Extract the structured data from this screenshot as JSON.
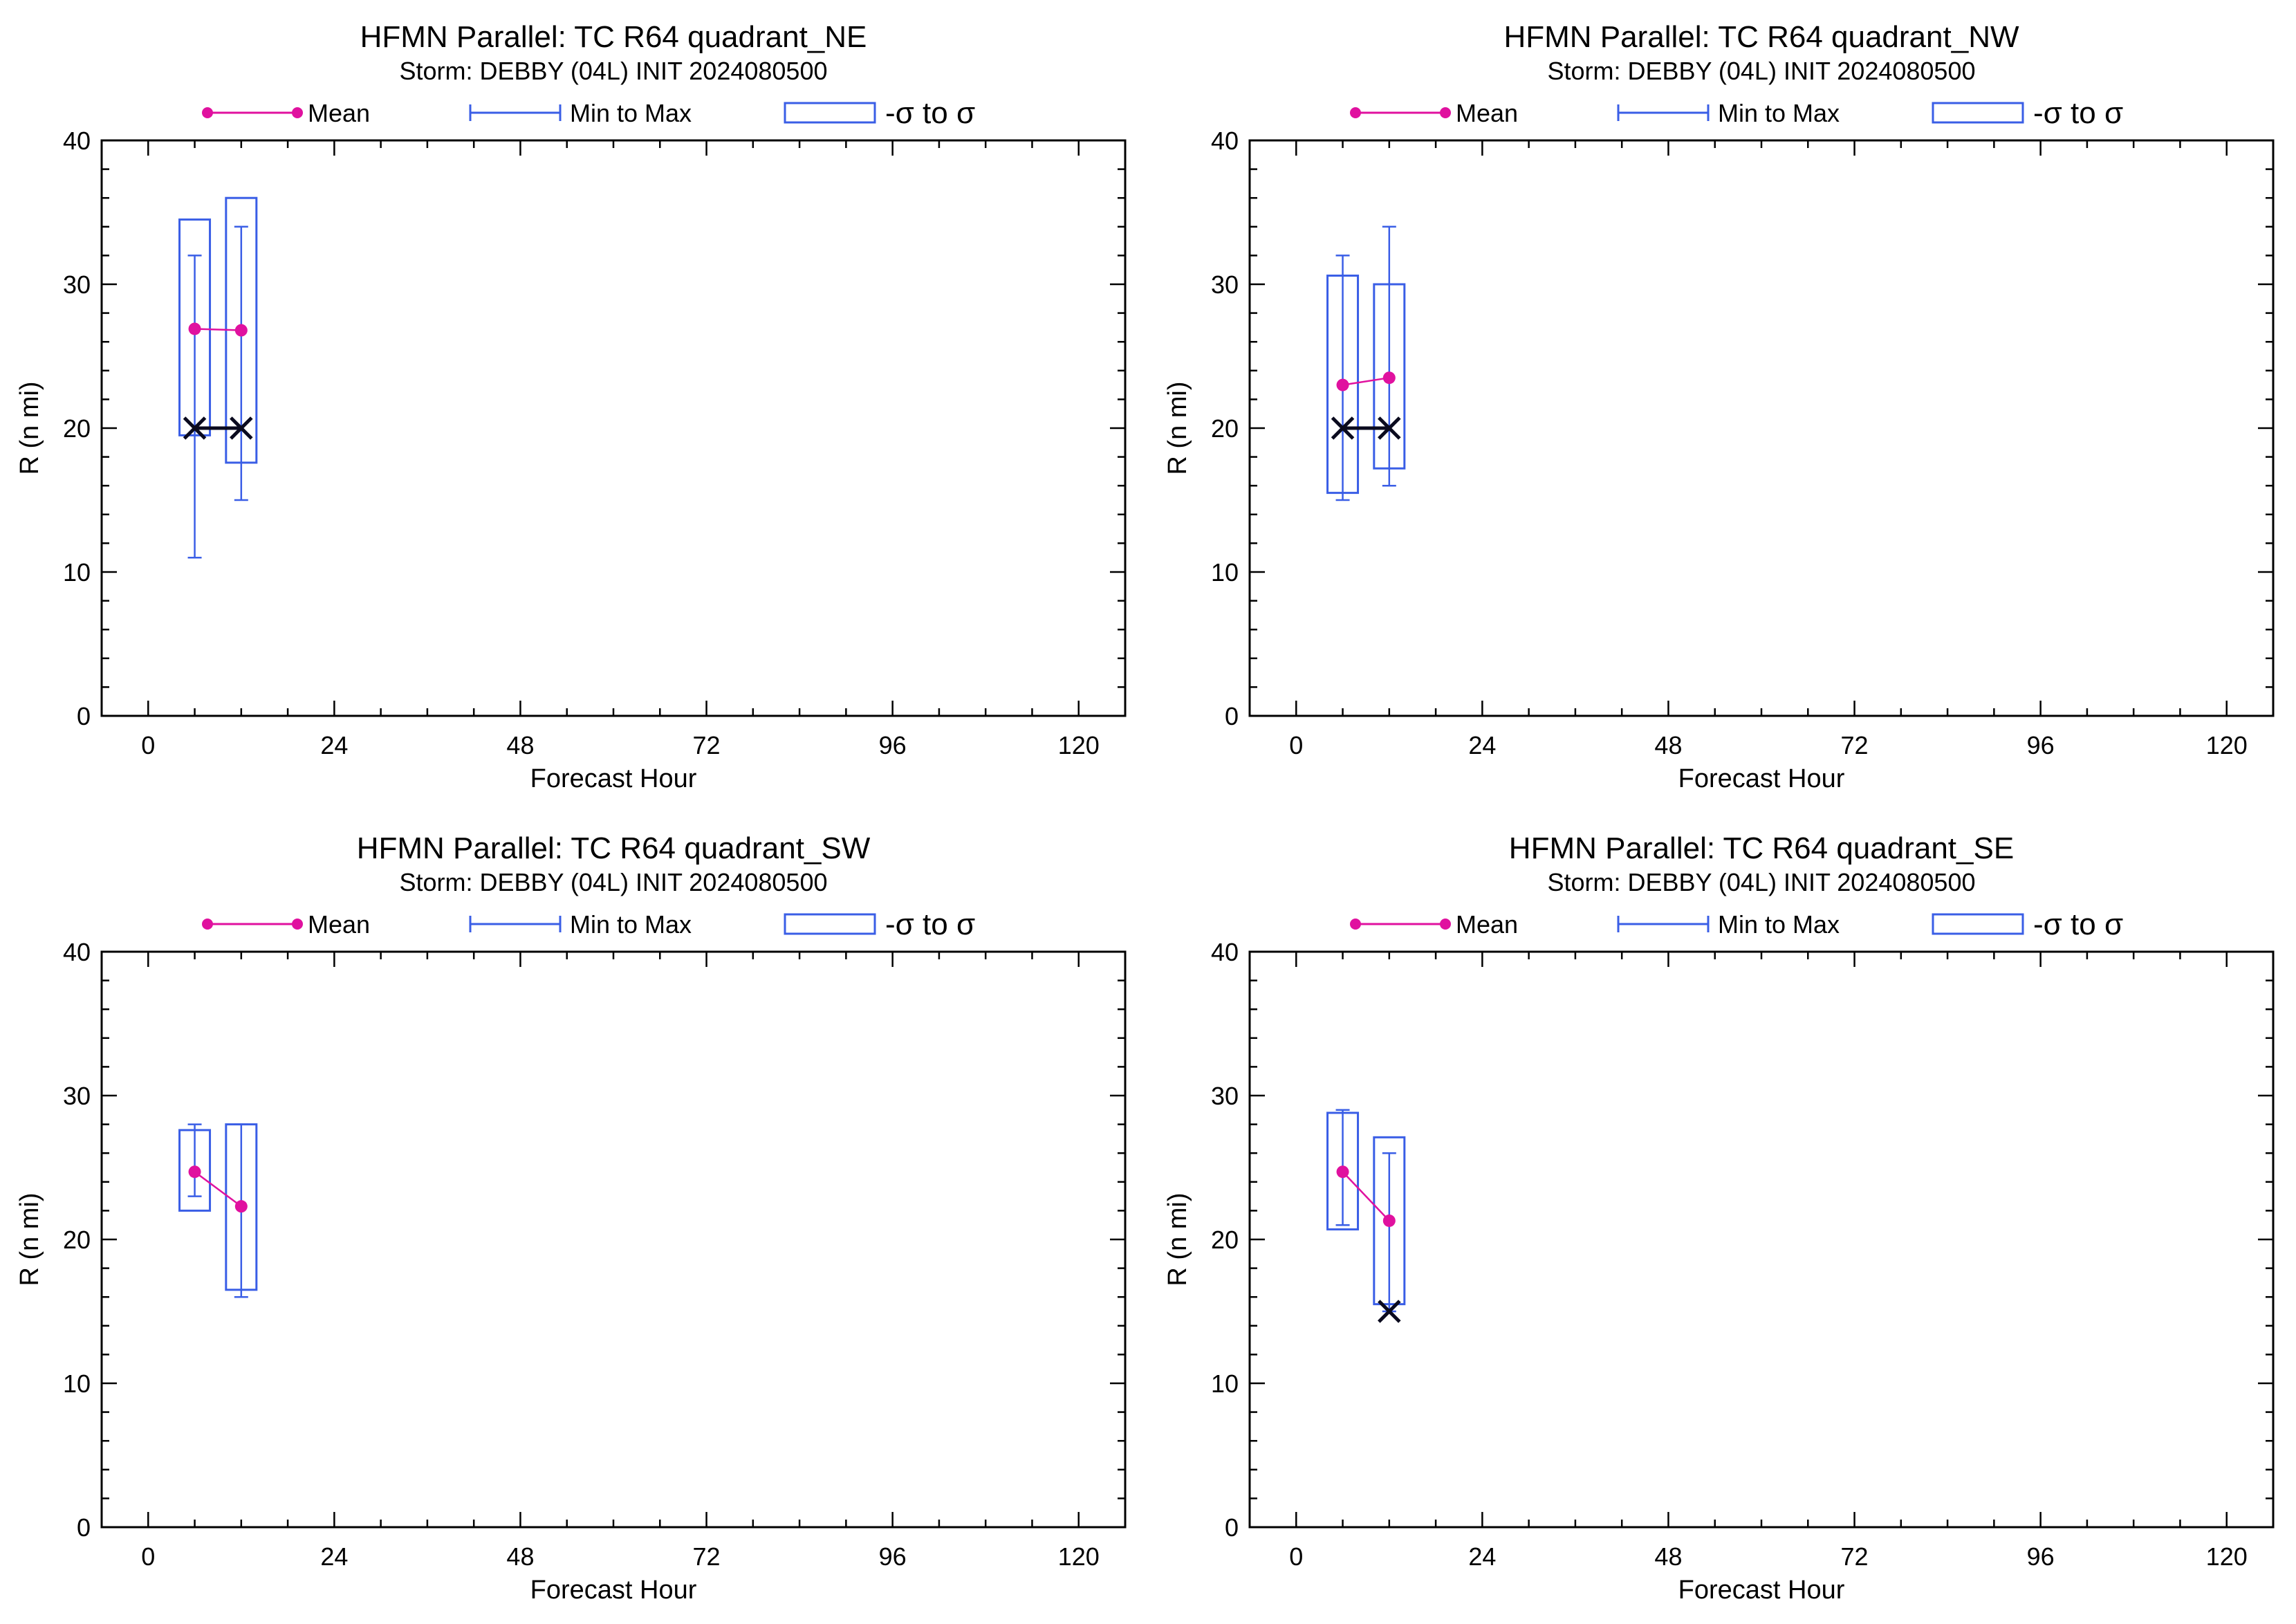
{
  "colors": {
    "mean": "#e0119f",
    "range": "#3a5ee6",
    "marker": "#0a0a1e",
    "axis": "#000000"
  },
  "legend": {
    "mean": "Mean",
    "minmax": "Min to Max",
    "sigma": "-σ to σ"
  },
  "chart_data": [
    {
      "type": "boxplot-line",
      "title": "HFMN Parallel: TC  R64 quadrant_NE",
      "subtitle": "Storm: DEBBY (04L) INIT 2024080500",
      "xlabel": "Forecast Hour",
      "ylabel": "R (n mi)",
      "xlim": [
        -6,
        126
      ],
      "ylim": [
        0,
        40
      ],
      "xticks": [
        0,
        24,
        48,
        72,
        96,
        120
      ],
      "yticks": [
        0,
        10,
        20,
        30,
        40
      ],
      "x": [
        6,
        12
      ],
      "mean": [
        26.9,
        26.8
      ],
      "min": [
        11,
        15
      ],
      "max": [
        32,
        34
      ],
      "sigma_low": [
        19.5,
        17.6
      ],
      "sigma_high": [
        34.5,
        36
      ],
      "observed": [
        [
          6,
          20
        ],
        [
          12,
          20
        ]
      ],
      "observed_connected": true
    },
    {
      "type": "boxplot-line",
      "title": "HFMN Parallel: TC  R64 quadrant_NW",
      "subtitle": "Storm: DEBBY (04L) INIT 2024080500",
      "xlabel": "Forecast Hour",
      "ylabel": "R (n mi)",
      "xlim": [
        -6,
        126
      ],
      "ylim": [
        0,
        40
      ],
      "xticks": [
        0,
        24,
        48,
        72,
        96,
        120
      ],
      "yticks": [
        0,
        10,
        20,
        30,
        40
      ],
      "x": [
        6,
        12
      ],
      "mean": [
        23,
        23.5
      ],
      "min": [
        15,
        16
      ],
      "max": [
        32,
        34
      ],
      "sigma_low": [
        15.5,
        17.2
      ],
      "sigma_high": [
        30.6,
        30
      ],
      "observed": [
        [
          6,
          20
        ],
        [
          12,
          20
        ]
      ],
      "observed_connected": true
    },
    {
      "type": "boxplot-line",
      "title": "HFMN Parallel: TC  R64 quadrant_SW",
      "subtitle": "Storm: DEBBY (04L) INIT 2024080500",
      "xlabel": "Forecast Hour",
      "ylabel": "R (n mi)",
      "xlim": [
        -6,
        126
      ],
      "ylim": [
        0,
        40
      ],
      "xticks": [
        0,
        24,
        48,
        72,
        96,
        120
      ],
      "yticks": [
        0,
        10,
        20,
        30,
        40
      ],
      "x": [
        6,
        12
      ],
      "mean": [
        24.7,
        22.3
      ],
      "min": [
        23,
        16
      ],
      "max": [
        28,
        28
      ],
      "sigma_low": [
        22,
        16.5
      ],
      "sigma_high": [
        27.6,
        28
      ],
      "observed": [],
      "observed_connected": false
    },
    {
      "type": "boxplot-line",
      "title": "HFMN Parallel: TC  R64 quadrant_SE",
      "subtitle": "Storm: DEBBY (04L) INIT 2024080500",
      "xlabel": "Forecast Hour",
      "ylabel": "R (n mi)",
      "xlim": [
        -6,
        126
      ],
      "ylim": [
        0,
        40
      ],
      "xticks": [
        0,
        24,
        48,
        72,
        96,
        120
      ],
      "yticks": [
        0,
        10,
        20,
        30,
        40
      ],
      "x": [
        6,
        12
      ],
      "mean": [
        24.7,
        21.3
      ],
      "min": [
        21,
        15
      ],
      "max": [
        29,
        26
      ],
      "sigma_low": [
        20.7,
        15.5
      ],
      "sigma_high": [
        28.8,
        27.1
      ],
      "observed": [
        [
          12,
          15
        ]
      ],
      "observed_connected": false
    }
  ]
}
